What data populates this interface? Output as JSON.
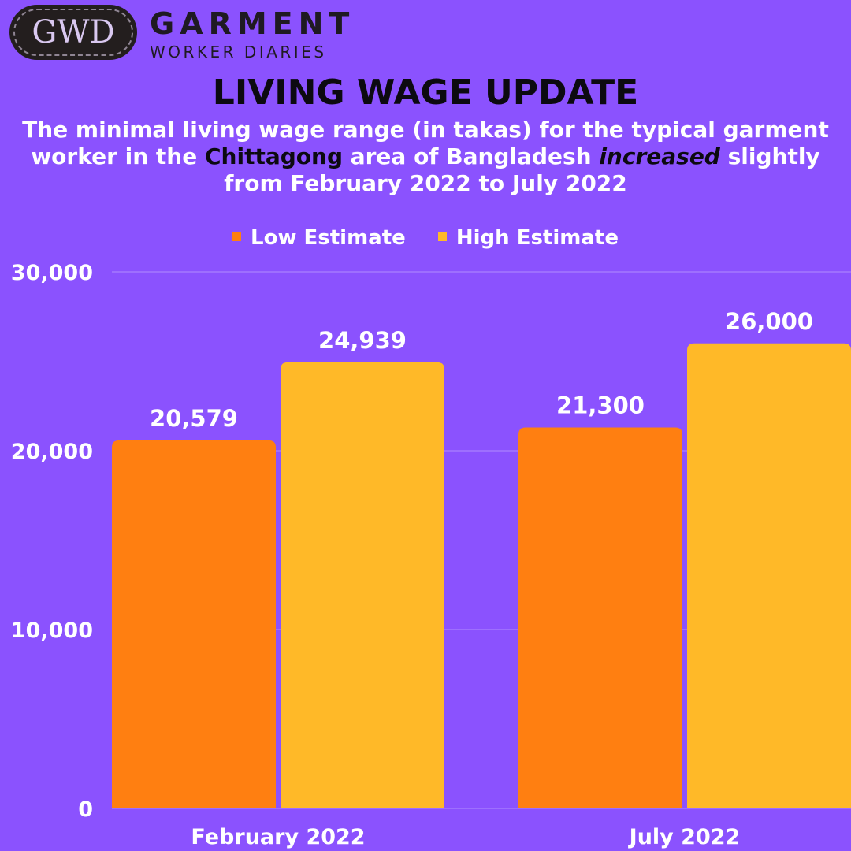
{
  "logo": {
    "abbr": "GWD",
    "name": "GARMENT",
    "sub": "WORKER DIARIES"
  },
  "header": {
    "title": "LIVING WAGE UPDATE",
    "subtitle_part1": "The minimal living wage range (in takas) for the typical garment worker in the ",
    "subtitle_highlight": "Chittagong",
    "subtitle_part2": " area of Bangladesh ",
    "subtitle_emphasis": "increased",
    "subtitle_part3": " slightly from February 2022 to July 2022"
  },
  "colors": {
    "background": "#8b52fe",
    "low": "#ff7f11",
    "high": "#ffb928"
  },
  "chart_data": {
    "type": "bar",
    "categories": [
      "February 2022",
      "July 2022"
    ],
    "series": [
      {
        "name": "Low Estimate",
        "values": [
          20579,
          21300
        ],
        "labels": [
          "20,579",
          "21,300"
        ],
        "color": "#ff7f11"
      },
      {
        "name": "High Estimate",
        "values": [
          24939,
          26000
        ],
        "labels": [
          "24,939",
          "26,000"
        ],
        "color": "#ffb928"
      }
    ],
    "ylim": [
      0,
      30000
    ],
    "yticks": [
      0,
      10000,
      20000,
      30000
    ],
    "ytick_labels": [
      "0",
      "10,000",
      "20,000",
      "30,000"
    ],
    "grid": true,
    "legend_position": "top-center"
  }
}
